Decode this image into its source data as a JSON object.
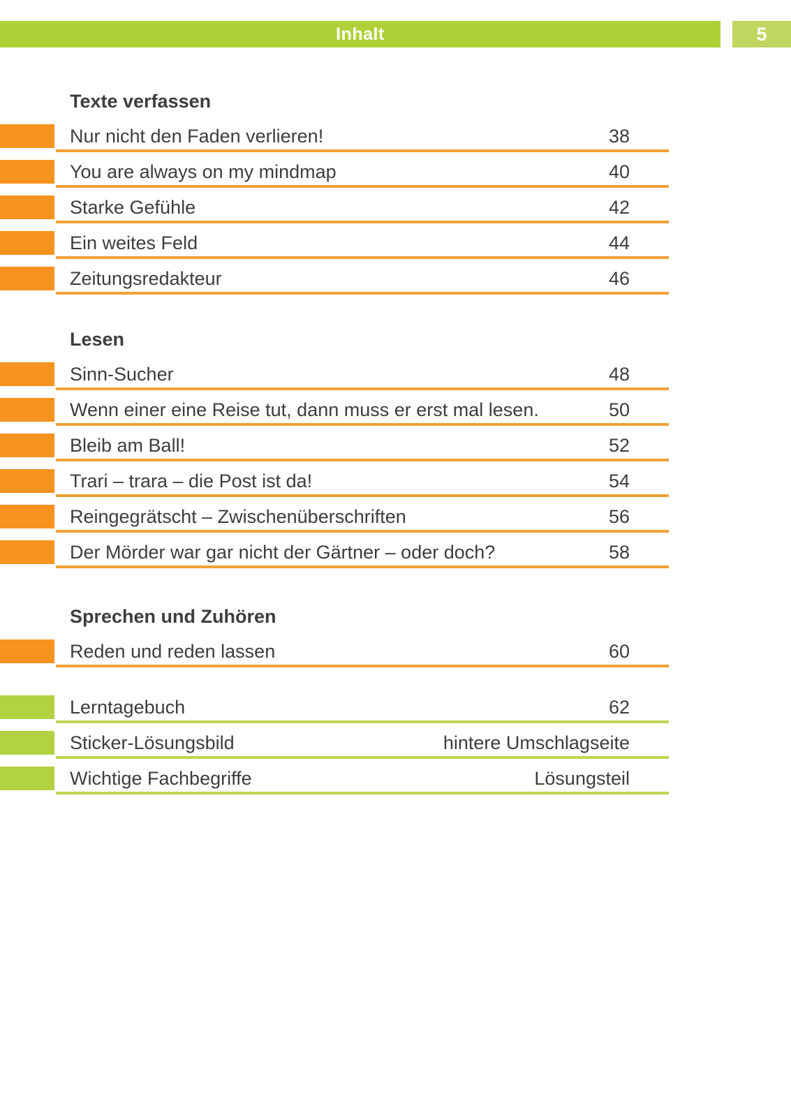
{
  "header": {
    "title": "Inhalt",
    "page_number": "5"
  },
  "colors": {
    "header_green": "#afd037",
    "badge_green": "#c0d75f",
    "marker_orange": "#f6921e",
    "rule_orange": "#f0a137",
    "marker_green": "#b2d242",
    "rule_green": "#bcd64f",
    "text_gray": "#3d3d3b",
    "white": "#ffffff"
  },
  "sections": [
    {
      "heading": "Texte verfassen",
      "entries": [
        {
          "title": "Nur nicht den Faden verlieren!",
          "page": "38"
        },
        {
          "title": "You are always on my mindmap",
          "page": "40"
        },
        {
          "title": "Starke Gefühle",
          "page": "42"
        },
        {
          "title": "Ein weites Feld",
          "page": "44"
        },
        {
          "title": "Zeitungsredakteur",
          "page": "46"
        }
      ]
    },
    {
      "heading": "Lesen",
      "entries": [
        {
          "title": "Sinn-Sucher",
          "page": "48"
        },
        {
          "title": "Wenn einer eine Reise tut, dann muss er erst mal lesen.",
          "page": "50"
        },
        {
          "title": "Bleib am Ball!",
          "page": "52"
        },
        {
          "title": "Trari – trara – die Post ist da!",
          "page": "54"
        },
        {
          "title": "Reingegrätscht – Zwischenüberschriften",
          "page": "56"
        },
        {
          "title": "Der Mörder war gar nicht der Gärtner – oder doch?",
          "page": "58"
        }
      ]
    },
    {
      "heading": "Sprechen und Zuhören",
      "entries": [
        {
          "title": "Reden und reden lassen",
          "page": "60"
        }
      ]
    },
    {
      "heading": "",
      "entries": [
        {
          "title": "Lerntagebuch",
          "page": "62"
        },
        {
          "title": "Sticker-Lösungsbild",
          "page": "hintere Umschlagseite"
        },
        {
          "title": "Wichtige Fachbegriffe",
          "page": "Lösungsteil"
        }
      ]
    }
  ]
}
